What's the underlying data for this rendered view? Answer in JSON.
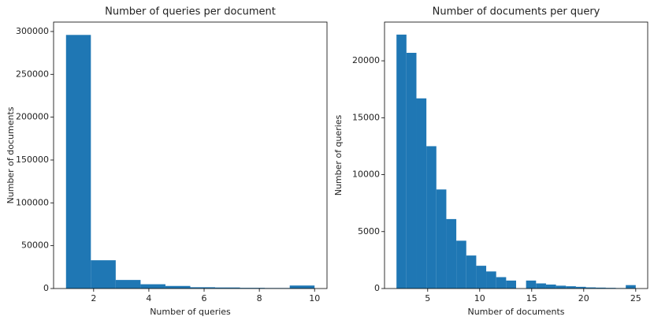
{
  "chart_data": [
    {
      "type": "histogram",
      "title": "Number of queries per document",
      "x_label": "Number of queries",
      "y_label": "Number of documents",
      "bins": [
        1,
        1.9,
        2.8,
        3.7,
        4.6,
        5.5,
        6.4,
        7.3,
        8.2,
        9.1,
        10
      ],
      "values": [
        296000,
        33000,
        10000,
        5000,
        3000,
        1500,
        1200,
        800,
        600,
        3500
      ],
      "color": "#1f77b4",
      "xlim": [
        0.55,
        10.45
      ],
      "ylim": [
        0,
        311000
      ],
      "xticks": [
        2,
        4,
        6,
        8,
        10
      ],
      "yticks": [
        0,
        50000,
        100000,
        150000,
        200000,
        250000,
        300000
      ]
    },
    {
      "type": "histogram",
      "title": "Number of documents per query",
      "x_label": "Number of documents",
      "y_label": "Number of queries",
      "bins": [
        2,
        2.958,
        3.917,
        4.875,
        5.833,
        6.792,
        7.75,
        8.708,
        9.667,
        10.625,
        11.583,
        12.542,
        13.5,
        14.458,
        15.417,
        16.375,
        17.333,
        18.292,
        19.25,
        20.208,
        21.167,
        22.125,
        23.083,
        24.042,
        25
      ],
      "values": [
        22300,
        20700,
        16700,
        12500,
        8700,
        6100,
        4200,
        2900,
        2000,
        1500,
        1000,
        700,
        0,
        700,
        450,
        350,
        250,
        200,
        150,
        100,
        80,
        60,
        40,
        300
      ],
      "color": "#1f77b4",
      "xlim": [
        0.85,
        26.15
      ],
      "ylim": [
        0,
        23400
      ],
      "xticks": [
        5,
        10,
        15,
        20,
        25
      ],
      "yticks": [
        0,
        5000,
        10000,
        15000,
        20000
      ]
    }
  ]
}
